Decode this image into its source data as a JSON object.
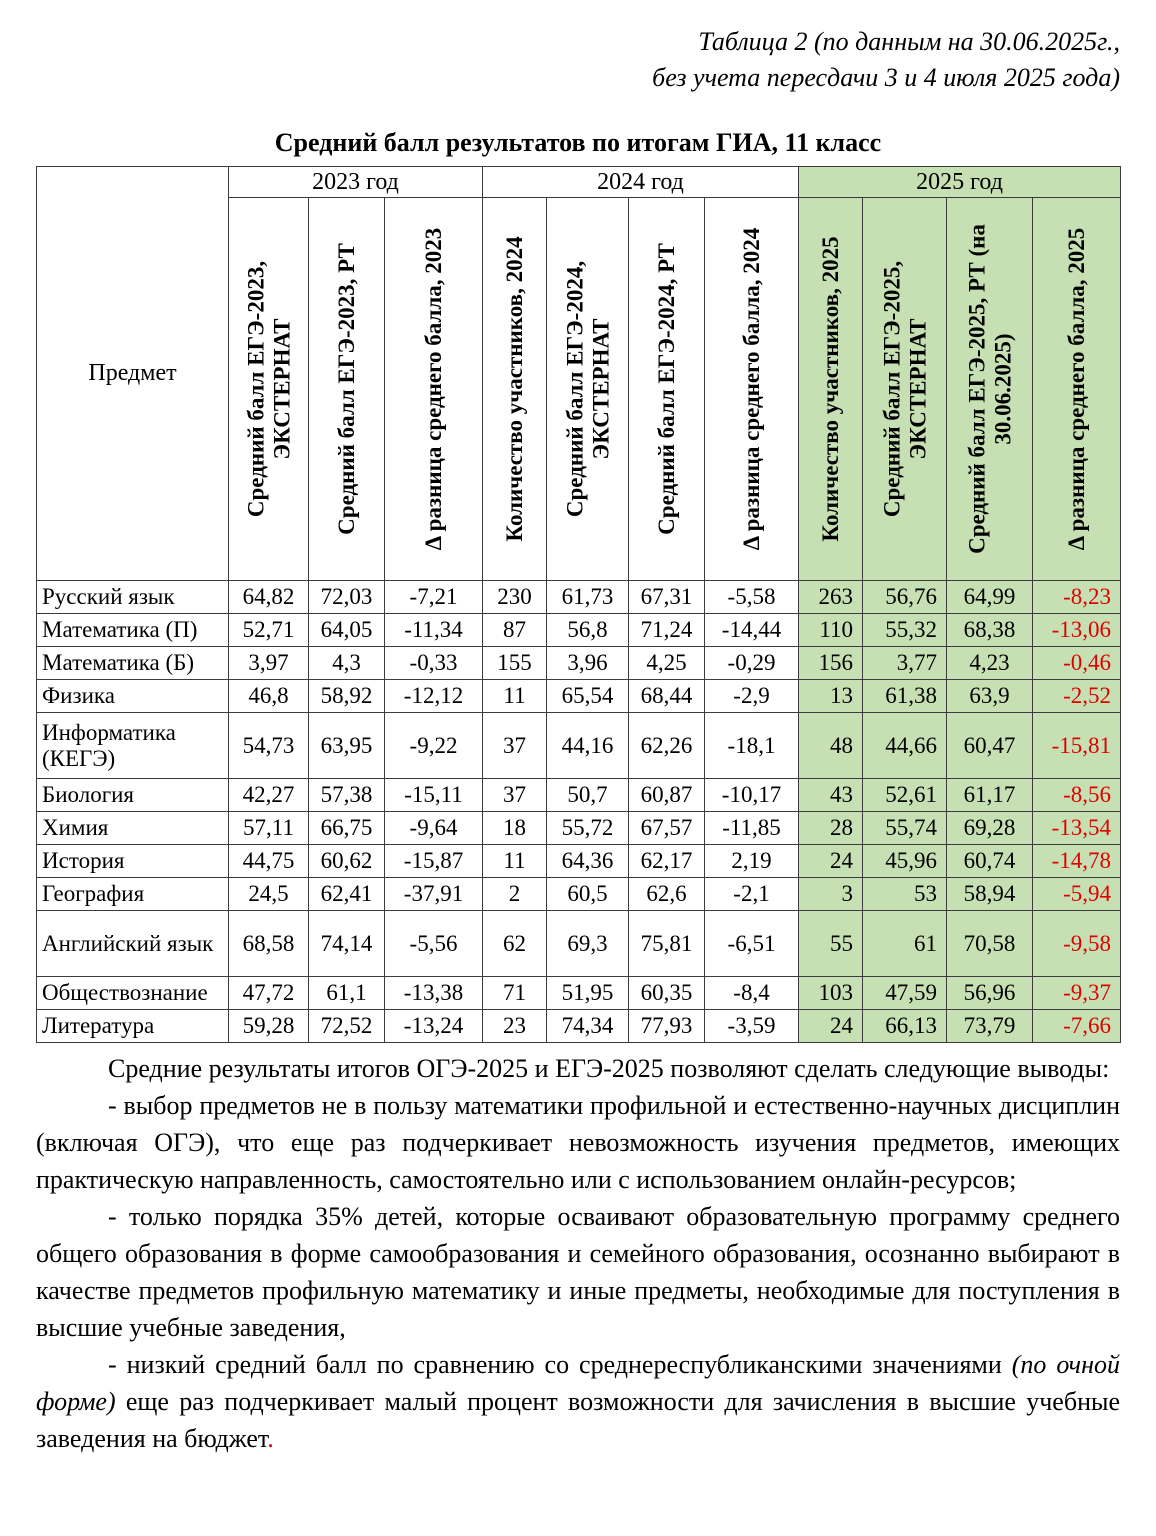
{
  "page": {
    "caption_line1": "Таблица 2 (по данным на 30.06.2025г.,",
    "caption_line2": "без учета пересдачи 3 и 4 июля 2025 года)",
    "title": "Средний балл результатов по итогам ГИА, 11 класс"
  },
  "colors": {
    "green_header_bg": "#c6e0b4",
    "negative_delta_text": "#e00000"
  },
  "table": {
    "corner_header": "Предмет",
    "groups": [
      {
        "label": "2023 год"
      },
      {
        "label": "2024 год"
      },
      {
        "label": "2025 год"
      }
    ],
    "columns": [
      "Средний балл ЕГЭ-2023, ЭКСТЕРНАТ",
      "Средний балл ЕГЭ-2023, РТ",
      "Δ разница среднего балла, 2023",
      "Количество участников, 2024",
      "Средний балл ЕГЭ-2024, ЭКСТЕРНАТ",
      "Средний балл ЕГЭ-2024, РТ",
      "Δ разница среднего балла, 2024",
      "Количество участников, 2025",
      "Средний балл ЕГЭ-2025, ЭКСТЕРНАТ",
      "Средний балл ЕГЭ-2025, РТ (на 30.06.2025)",
      "Δ разница среднего балла, 2025"
    ],
    "rows": [
      {
        "subject": "Русский язык",
        "values": [
          "64,82",
          "72,03",
          "-7,21",
          "230",
          "61,73",
          "67,31",
          "-5,58",
          "263",
          "56,76",
          "64,99",
          "-8,23"
        ]
      },
      {
        "subject": "Математика (П)",
        "values": [
          "52,71",
          "64,05",
          "-11,34",
          "87",
          "56,8",
          "71,24",
          "-14,44",
          "110",
          "55,32",
          "68,38",
          "-13,06"
        ]
      },
      {
        "subject": "Математика (Б)",
        "values": [
          "3,97",
          "4,3",
          "-0,33",
          "155",
          "3,96",
          "4,25",
          "-0,29",
          "156",
          "3,77",
          "4,23",
          "-0,46"
        ]
      },
      {
        "subject": "Физика",
        "values": [
          "46,8",
          "58,92",
          "-12,12",
          "11",
          "65,54",
          "68,44",
          "-2,9",
          "13",
          "61,38",
          "63,9",
          "-2,52"
        ]
      },
      {
        "subject": "Информатика (КЕГЭ)",
        "values": [
          "54,73",
          "63,95",
          "-9,22",
          "37",
          "44,16",
          "62,26",
          "-18,1",
          "48",
          "44,66",
          "60,47",
          "-15,81"
        ]
      },
      {
        "subject": "Биология",
        "values": [
          "42,27",
          "57,38",
          "-15,11",
          "37",
          "50,7",
          "60,87",
          "-10,17",
          "43",
          "52,61",
          "61,17",
          "-8,56"
        ]
      },
      {
        "subject": "Химия",
        "values": [
          "57,11",
          "66,75",
          "-9,64",
          "18",
          "55,72",
          "67,57",
          "-11,85",
          "28",
          "55,74",
          "69,28",
          "-13,54"
        ]
      },
      {
        "subject": "История",
        "values": [
          "44,75",
          "60,62",
          "-15,87",
          "11",
          "64,36",
          "62,17",
          "2,19",
          "24",
          "45,96",
          "60,74",
          "-14,78"
        ]
      },
      {
        "subject": "География",
        "values": [
          "24,5",
          "62,41",
          "-37,91",
          "2",
          "60,5",
          "62,6",
          "-2,1",
          "3",
          "53",
          "58,94",
          "-5,94"
        ]
      },
      {
        "subject": "Английский язык",
        "values": [
          "68,58",
          "74,14",
          "-5,56",
          "62",
          "69,3",
          "75,81",
          "-6,51",
          "55",
          "61",
          "70,58",
          "-9,58"
        ]
      },
      {
        "subject": "Обществознание",
        "values": [
          "47,72",
          "61,1",
          "-13,38",
          "71",
          "51,95",
          "60,35",
          "-8,4",
          "103",
          "47,59",
          "56,96",
          "-9,37"
        ]
      },
      {
        "subject": "Литература",
        "values": [
          "59,28",
          "72,52",
          "-13,24",
          "23",
          "74,34",
          "77,93",
          "-3,59",
          "24",
          "66,13",
          "73,79",
          "-7,66"
        ]
      }
    ]
  },
  "notes": {
    "p1": "Средние результаты итогов ОГЭ-2025 и ЕГЭ-2025 позволяют сделать следующие выводы:",
    "p2": "- выбор предметов не в пользу математики профильной и естественно-научных дисциплин (включая ОГЭ), что еще раз подчеркивает невозможность изучения предметов, имеющих практическую направленность, самостоятельно или с использованием онлайн-ресурсов;",
    "p3": "- только порядка 35% детей, которые осваивают образовательную программу среднего общего образования в форме самообразования и семейного образования, осознанно выбирают в качестве предметов профильную математику и иные предметы, необходимые для поступления в высшие учебные заведения,",
    "p4_pre": "- низкий средний балл по сравнению со среднереспубликанскими значениями ",
    "p4_italic": "(по очной форме)",
    "p4_post": " еще раз подчеркивает малый процент возможности для зачисления в высшие учебные заведения на бюджет",
    "p4_period": "."
  }
}
